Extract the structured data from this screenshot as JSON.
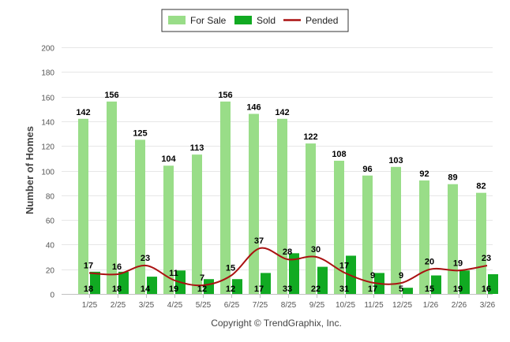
{
  "chart_data": {
    "type": "bar",
    "title": "",
    "xlabel": "",
    "ylabel": "Number of Homes",
    "ylim": [
      0,
      200
    ],
    "yticks": [
      0,
      20,
      40,
      60,
      80,
      100,
      120,
      140,
      160,
      180,
      200
    ],
    "grid": true,
    "legend_position": "top-center",
    "categories": [
      "1/25",
      "2/25",
      "3/25",
      "4/25",
      "5/25",
      "6/25",
      "7/25",
      "8/25",
      "9/25",
      "10/25",
      "11/25",
      "12/25",
      "1/26",
      "2/26",
      "3/26"
    ],
    "series": [
      {
        "name": "For Sale",
        "type": "bar",
        "color": "#99dd88",
        "values": [
          142,
          156,
          125,
          104,
          113,
          156,
          146,
          142,
          122,
          108,
          96,
          103,
          92,
          89,
          82
        ]
      },
      {
        "name": "Sold",
        "type": "bar",
        "color": "#11aa22",
        "values": [
          18,
          18,
          14,
          19,
          12,
          12,
          17,
          33,
          22,
          31,
          17,
          5,
          15,
          19,
          16
        ]
      },
      {
        "name": "Pended",
        "type": "line",
        "color": "#aa1111",
        "values": [
          17,
          16,
          23,
          11,
          7,
          15,
          37,
          28,
          30,
          17,
          9,
          9,
          20,
          19,
          23
        ]
      }
    ],
    "footer": "Copyright © TrendGraphix, Inc."
  }
}
